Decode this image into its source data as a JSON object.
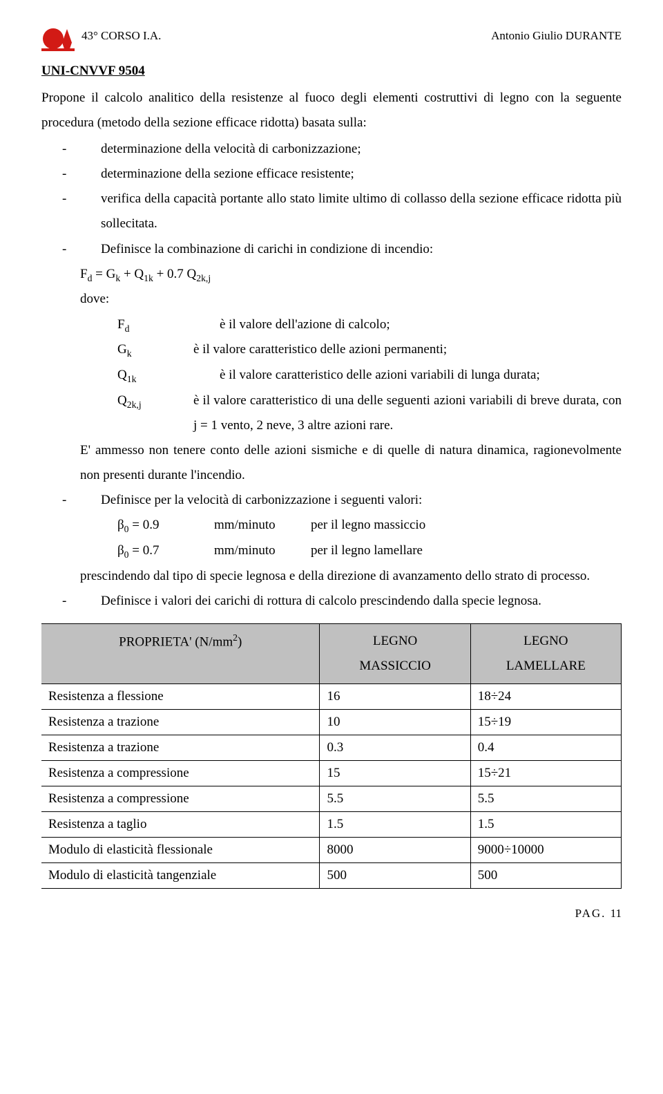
{
  "header": {
    "left": "43° CORSO I.A.",
    "right": "Antonio Giulio DURANTE"
  },
  "section_title": "UNI-CNVVF 9504",
  "intro": "Propone il calcolo analitico della resistenze al fuoco degli elementi costruttivi di legno con la seguente procedura (metodo della sezione efficace ridotta) basata sulla:",
  "b1": "determinazione della velocità di carbonizzazione;",
  "b2": "determinazione della sezione efficace resistente;",
  "b3": "verifica della capacità portante allo stato limite ultimo di collasso della sezione efficace ridotta più sollecitata.",
  "b4": "Definisce la combinazione di carichi in condizione di incendio:",
  "formula_html": "F<sub>d</sub> = G<sub>k</sub> + Q<sub>1k</sub> + 0.7 Q<sub>2k,j</sub>",
  "dove": "dove:",
  "defs": [
    {
      "sym": "F<sub>d</sub>",
      "body": "è il valore dell'azione di calcolo;",
      "indent": true
    },
    {
      "sym": "G<sub>k</sub>",
      "body": "è il valore caratteristico delle azioni permanenti;",
      "indent": false
    },
    {
      "sym": "Q<sub>1k</sub>",
      "body": "è il valore caratteristico delle azioni variabili di lunga durata;",
      "indent": true
    },
    {
      "sym": "Q<sub>2k,j</sub>",
      "body": "è il valore caratteristico di una delle seguenti azioni variabili di breve durata, con j = 1 vento, 2 neve, 3 altre azioni rare.",
      "indent": false
    }
  ],
  "post_defs": "E' ammesso non tenere conto delle azioni sismiche e di quelle di natura dinamica, ragionevolmente non presenti durante l'incendio.",
  "b5": "Definisce per la velocità di carbonizzazione i seguenti valori:",
  "beta": [
    {
      "sym": "β<sub>0</sub> = 0.9",
      "unit": "mm/minuto",
      "desc": "per il legno massiccio"
    },
    {
      "sym": "β<sub>0</sub> = 0.7",
      "unit": "mm/minuto",
      "desc": "per il legno lamellare"
    }
  ],
  "post_beta": "prescindendo dal tipo di specie legnosa e della direzione di avanzamento dello strato di processo.",
  "b6": "Definisce i valori dei carichi di rottura di calcolo prescindendo dalla specie legnosa.",
  "table": {
    "head": [
      "PROPRIETA' (N/mm<sup>2</sup>)",
      "LEGNO MASSICCIO",
      "LEGNO LAMELLARE"
    ],
    "rows": [
      [
        "Resistenza a flessione",
        "16",
        "18÷24"
      ],
      [
        "Resistenza a trazione",
        "10",
        "15÷19"
      ],
      [
        "Resistenza a trazione",
        "0.3",
        "0.4"
      ],
      [
        "Resistenza a compressione",
        "15",
        "15÷21"
      ],
      [
        "Resistenza a compressione",
        "5.5",
        "5.5"
      ],
      [
        "Resistenza a taglio",
        "1.5",
        "1.5"
      ],
      [
        "Modulo di elasticità flessionale",
        "8000",
        "9000÷10000"
      ],
      [
        "Modulo di elasticità tangenziale",
        "500",
        "500"
      ]
    ]
  },
  "footer": {
    "label": "PAG.",
    "num": "11"
  }
}
